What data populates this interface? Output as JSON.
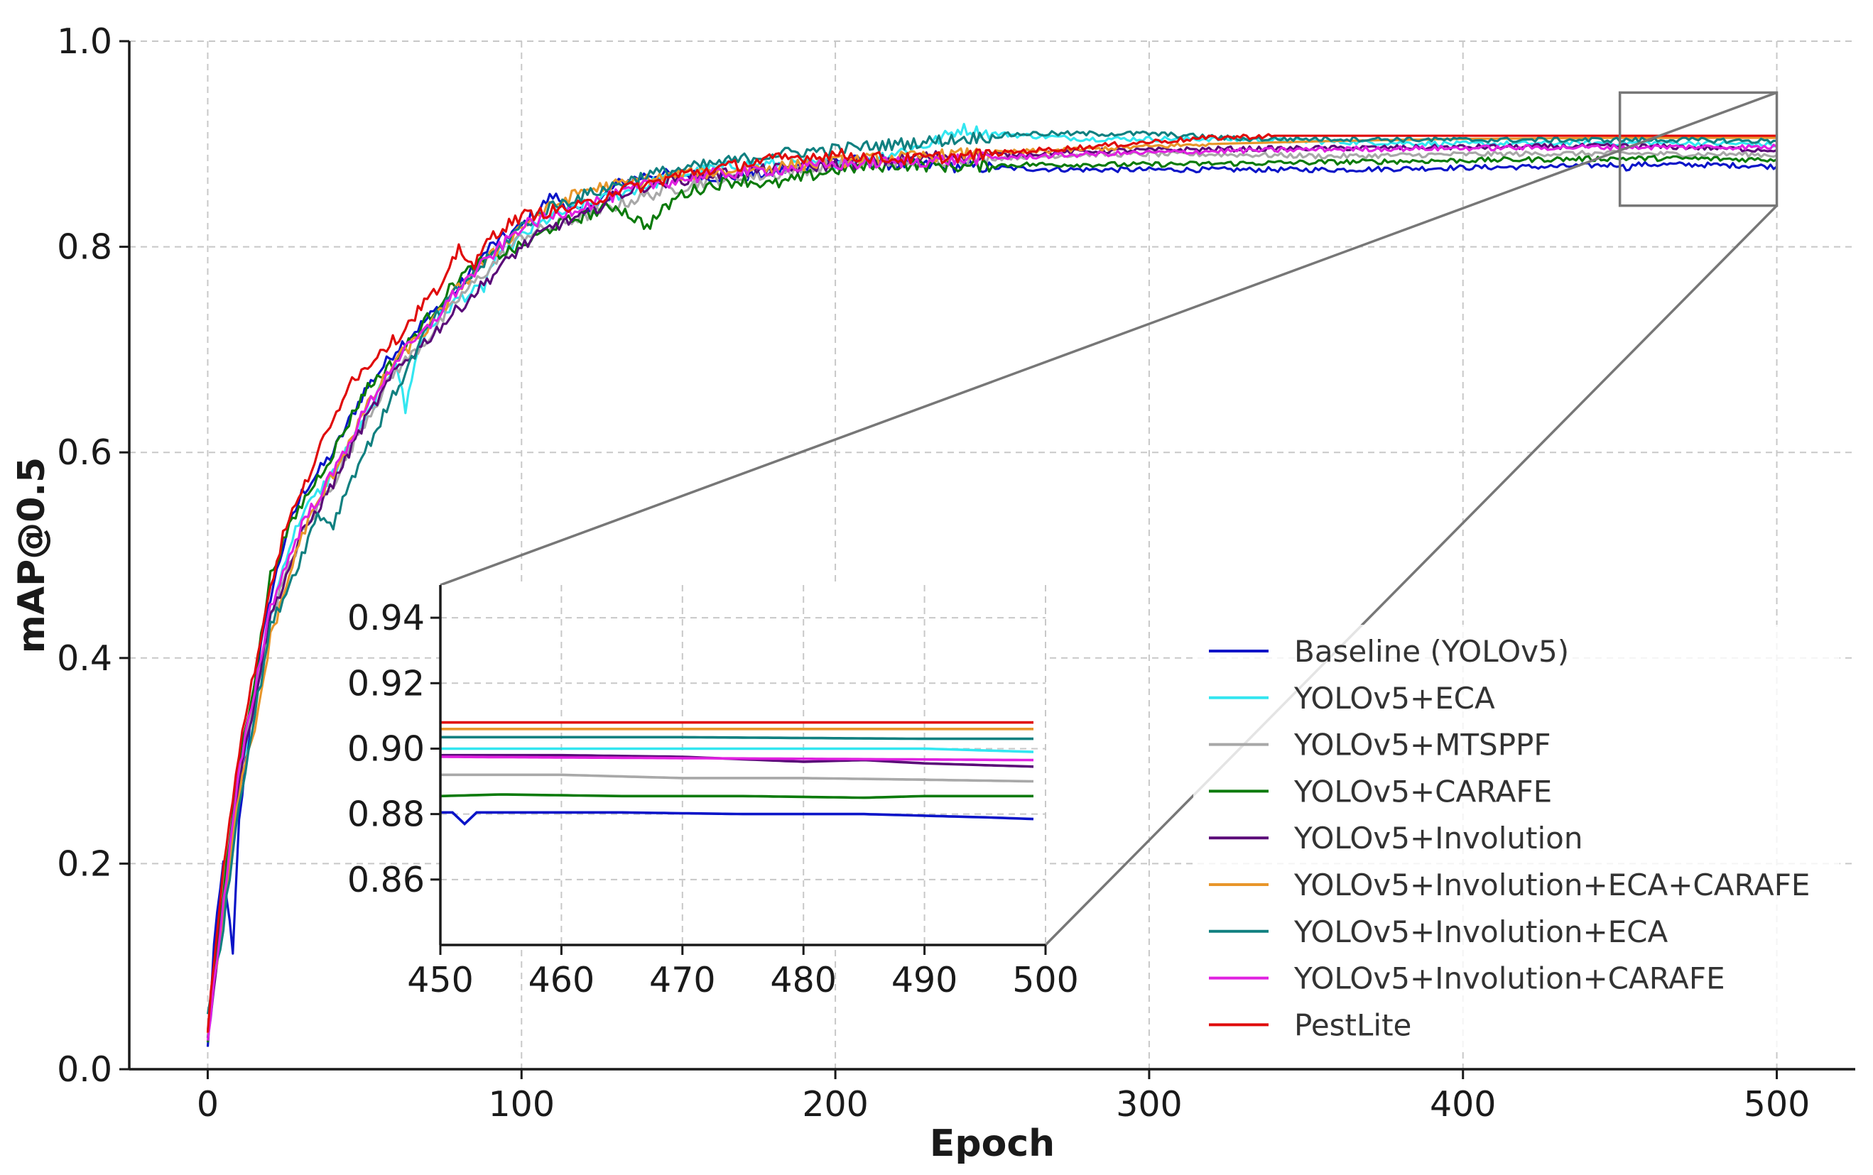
{
  "chart_data": {
    "type": "line",
    "title": "",
    "xlabel": "Epoch",
    "ylabel": "mAP@0.5",
    "xlim": [
      -25,
      525
    ],
    "ylim": [
      0.0,
      1.0
    ],
    "xticks": [
      "0",
      "100",
      "200",
      "300",
      "400",
      "500"
    ],
    "yticks": [
      "0.0",
      "0.2",
      "0.4",
      "0.6",
      "0.8",
      "1.0"
    ],
    "grid": true,
    "legend_position": "lower-right",
    "series": [
      {
        "name": "Baseline (YOLOv5)",
        "color": "#0a14c8",
        "x": [
          0,
          2,
          5,
          8,
          10,
          15,
          20,
          25,
          30,
          40,
          50,
          60,
          70,
          80,
          90,
          100,
          110,
          120,
          130,
          140,
          150,
          165,
          180,
          200,
          220,
          240,
          260,
          280,
          300,
          330,
          360,
          400,
          430,
          450,
          452,
          455,
          470,
          490,
          500
        ],
        "y": [
          0.02,
          0.12,
          0.2,
          0.11,
          0.24,
          0.38,
          0.46,
          0.52,
          0.56,
          0.6,
          0.66,
          0.7,
          0.73,
          0.76,
          0.8,
          0.82,
          0.85,
          0.83,
          0.86,
          0.87,
          0.87,
          0.868,
          0.872,
          0.885,
          0.88,
          0.878,
          0.876,
          0.875,
          0.875,
          0.875,
          0.875,
          0.877,
          0.878,
          0.88,
          0.876,
          0.88,
          0.88,
          0.879,
          0.878
        ]
      },
      {
        "name": "YOLOv5+ECA",
        "color": "#33e6f0",
        "x": [
          0,
          5,
          10,
          15,
          20,
          25,
          30,
          40,
          50,
          60,
          63,
          66,
          70,
          80,
          88,
          90,
          100,
          110,
          120,
          130,
          140,
          150,
          170,
          190,
          210,
          230,
          240,
          250,
          280,
          320,
          360,
          400,
          450,
          470,
          490,
          500
        ],
        "y": [
          0.03,
          0.16,
          0.28,
          0.36,
          0.44,
          0.5,
          0.54,
          0.58,
          0.63,
          0.69,
          0.64,
          0.69,
          0.72,
          0.75,
          0.76,
          0.78,
          0.81,
          0.83,
          0.84,
          0.85,
          0.86,
          0.87,
          0.88,
          0.88,
          0.885,
          0.9,
          0.915,
          0.91,
          0.905,
          0.905,
          0.902,
          0.9,
          0.901,
          0.901,
          0.9,
          0.899
        ]
      },
      {
        "name": "YOLOv5+MTSPPF",
        "color": "#a8a8a8",
        "x": [
          0,
          5,
          10,
          20,
          30,
          40,
          50,
          60,
          70,
          80,
          90,
          100,
          120,
          140,
          160,
          180,
          200,
          240,
          280,
          320,
          360,
          400,
          450,
          470,
          490,
          500
        ],
        "y": [
          0.04,
          0.18,
          0.29,
          0.44,
          0.52,
          0.57,
          0.63,
          0.68,
          0.71,
          0.75,
          0.78,
          0.81,
          0.83,
          0.85,
          0.865,
          0.87,
          0.88,
          0.885,
          0.89,
          0.89,
          0.888,
          0.89,
          0.891,
          0.89,
          0.89,
          0.889
        ]
      },
      {
        "name": "YOLOv5+CARAFE",
        "color": "#0a7a0a",
        "x": [
          0,
          5,
          10,
          15,
          20,
          25,
          30,
          40,
          50,
          60,
          70,
          80,
          90,
          100,
          110,
          120,
          130,
          140,
          150,
          160,
          170,
          180,
          200,
          220,
          240,
          260,
          300,
          350,
          400,
          450,
          470,
          490,
          500
        ],
        "y": [
          0.03,
          0.17,
          0.3,
          0.38,
          0.48,
          0.52,
          0.55,
          0.6,
          0.66,
          0.69,
          0.73,
          0.77,
          0.79,
          0.8,
          0.82,
          0.83,
          0.84,
          0.82,
          0.85,
          0.86,
          0.865,
          0.86,
          0.875,
          0.88,
          0.878,
          0.88,
          0.88,
          0.882,
          0.884,
          0.886,
          0.886,
          0.885,
          0.885
        ]
      },
      {
        "name": "YOLOv5+Involution",
        "color": "#5a0a78",
        "x": [
          0,
          5,
          10,
          20,
          30,
          40,
          50,
          60,
          70,
          80,
          90,
          100,
          110,
          120,
          130,
          140,
          160,
          180,
          200,
          220,
          240,
          260,
          280,
          320,
          360,
          400,
          450,
          470,
          490,
          500
        ],
        "y": [
          0.03,
          0.16,
          0.28,
          0.44,
          0.52,
          0.57,
          0.63,
          0.68,
          0.71,
          0.74,
          0.77,
          0.8,
          0.82,
          0.83,
          0.85,
          0.86,
          0.87,
          0.875,
          0.88,
          0.885,
          0.89,
          0.89,
          0.893,
          0.895,
          0.896,
          0.897,
          0.898,
          0.897,
          0.895,
          0.894
        ]
      },
      {
        "name": "YOLOv5+Involution+ECA+CARAFE",
        "color": "#e8962a",
        "x": [
          0,
          5,
          10,
          15,
          20,
          30,
          40,
          50,
          60,
          70,
          80,
          90,
          100,
          110,
          120,
          130,
          150,
          170,
          190,
          210,
          240,
          280,
          320,
          360,
          400,
          450,
          500
        ],
        "y": [
          0.04,
          0.15,
          0.27,
          0.33,
          0.42,
          0.52,
          0.58,
          0.64,
          0.69,
          0.72,
          0.76,
          0.79,
          0.82,
          0.84,
          0.855,
          0.86,
          0.87,
          0.875,
          0.88,
          0.885,
          0.89,
          0.895,
          0.9,
          0.903,
          0.905,
          0.906,
          0.906
        ]
      },
      {
        "name": "YOLOv5+Involution+ECA",
        "color": "#108080",
        "x": [
          0,
          5,
          10,
          20,
          30,
          35,
          40,
          45,
          50,
          60,
          70,
          80,
          90,
          100,
          110,
          120,
          140,
          160,
          180,
          200,
          220,
          240,
          260,
          280,
          300,
          330,
          360,
          400,
          450,
          470,
          490,
          500
        ],
        "y": [
          0.05,
          0.14,
          0.26,
          0.43,
          0.5,
          0.54,
          0.53,
          0.57,
          0.6,
          0.66,
          0.72,
          0.76,
          0.79,
          0.82,
          0.84,
          0.85,
          0.87,
          0.88,
          0.89,
          0.895,
          0.9,
          0.905,
          0.91,
          0.91,
          0.91,
          0.905,
          0.905,
          0.904,
          0.904,
          0.904,
          0.903,
          0.903
        ]
      },
      {
        "name": "YOLOv5+Involution+CARAFE",
        "color": "#e020e0",
        "x": [
          0,
          5,
          10,
          20,
          30,
          40,
          50,
          60,
          70,
          80,
          90,
          100,
          120,
          140,
          160,
          180,
          200,
          240,
          280,
          320,
          360,
          400,
          450,
          500
        ],
        "y": [
          0.03,
          0.16,
          0.29,
          0.45,
          0.53,
          0.58,
          0.64,
          0.69,
          0.72,
          0.76,
          0.79,
          0.82,
          0.84,
          0.86,
          0.87,
          0.875,
          0.88,
          0.885,
          0.89,
          0.893,
          0.895,
          0.896,
          0.897,
          0.897
        ]
      },
      {
        "name": "PestLite",
        "color": "#e00a0a",
        "x": [
          0,
          5,
          10,
          15,
          20,
          25,
          30,
          35,
          40,
          45,
          50,
          55,
          60,
          65,
          70,
          75,
          80,
          85,
          90,
          95,
          100,
          110,
          120,
          130,
          140,
          150,
          160,
          170,
          180,
          200,
          220,
          240,
          260,
          280,
          300,
          320,
          340,
          360,
          400,
          450,
          500
        ],
        "y": [
          0.04,
          0.2,
          0.31,
          0.39,
          0.47,
          0.53,
          0.56,
          0.6,
          0.63,
          0.67,
          0.68,
          0.7,
          0.71,
          0.73,
          0.75,
          0.76,
          0.8,
          0.78,
          0.81,
          0.82,
          0.83,
          0.835,
          0.84,
          0.855,
          0.86,
          0.87,
          0.875,
          0.88,
          0.885,
          0.89,
          0.885,
          0.888,
          0.893,
          0.897,
          0.902,
          0.906,
          0.908,
          0.908,
          0.908,
          0.908,
          0.908
        ]
      }
    ],
    "inset": {
      "xlim": [
        450,
        500
      ],
      "ylim": [
        0.84,
        0.95
      ],
      "xticks": [
        "450",
        "460",
        "470",
        "480",
        "490",
        "500"
      ],
      "yticks": [
        "0.86",
        "0.88",
        "0.90",
        "0.92",
        "0.94"
      ],
      "lines": [
        {
          "series": "Baseline (YOLOv5)",
          "color": "#0a14c8",
          "x": [
            450,
            451,
            452,
            453,
            455,
            465,
            475,
            485,
            495,
            499
          ],
          "y": [
            0.8805,
            0.8805,
            0.877,
            0.8805,
            0.8805,
            0.8805,
            0.88,
            0.88,
            0.879,
            0.8785
          ]
        },
        {
          "series": "YOLOv5+ECA",
          "color": "#33e6f0",
          "x": [
            450,
            470,
            490,
            499
          ],
          "y": [
            0.9,
            0.9,
            0.9,
            0.899
          ]
        },
        {
          "series": "YOLOv5+MTSPPF",
          "color": "#a8a8a8",
          "x": [
            450,
            460,
            470,
            480,
            490,
            499
          ],
          "y": [
            0.892,
            0.892,
            0.891,
            0.891,
            0.8905,
            0.89
          ]
        },
        {
          "series": "YOLOv5+CARAFE",
          "color": "#0a7a0a",
          "x": [
            450,
            455,
            465,
            475,
            485,
            490,
            499
          ],
          "y": [
            0.8855,
            0.886,
            0.8855,
            0.8855,
            0.885,
            0.8855,
            0.8855
          ]
        },
        {
          "series": "YOLOv5+Involution",
          "color": "#5a0a78",
          "x": [
            450,
            460,
            470,
            480,
            485,
            490,
            499
          ],
          "y": [
            0.898,
            0.898,
            0.8975,
            0.896,
            0.8965,
            0.8955,
            0.8945
          ]
        },
        {
          "series": "YOLOv5+Involution+ECA+CARAFE",
          "color": "#e8962a",
          "x": [
            450,
            499
          ],
          "y": [
            0.906,
            0.906
          ]
        },
        {
          "series": "YOLOv5+Involution+ECA",
          "color": "#108080",
          "x": [
            450,
            470,
            490,
            499
          ],
          "y": [
            0.9035,
            0.9035,
            0.903,
            0.903
          ]
        },
        {
          "series": "YOLOv5+Involution+CARAFE",
          "color": "#e020e0",
          "x": [
            450,
            499
          ],
          "y": [
            0.8975,
            0.8965
          ]
        },
        {
          "series": "PestLite",
          "color": "#e00a0a",
          "x": [
            450,
            499
          ],
          "y": [
            0.908,
            0.908
          ]
        }
      ]
    },
    "zoom_region": {
      "x": [
        450,
        500
      ],
      "y": [
        0.84,
        0.95
      ]
    }
  }
}
